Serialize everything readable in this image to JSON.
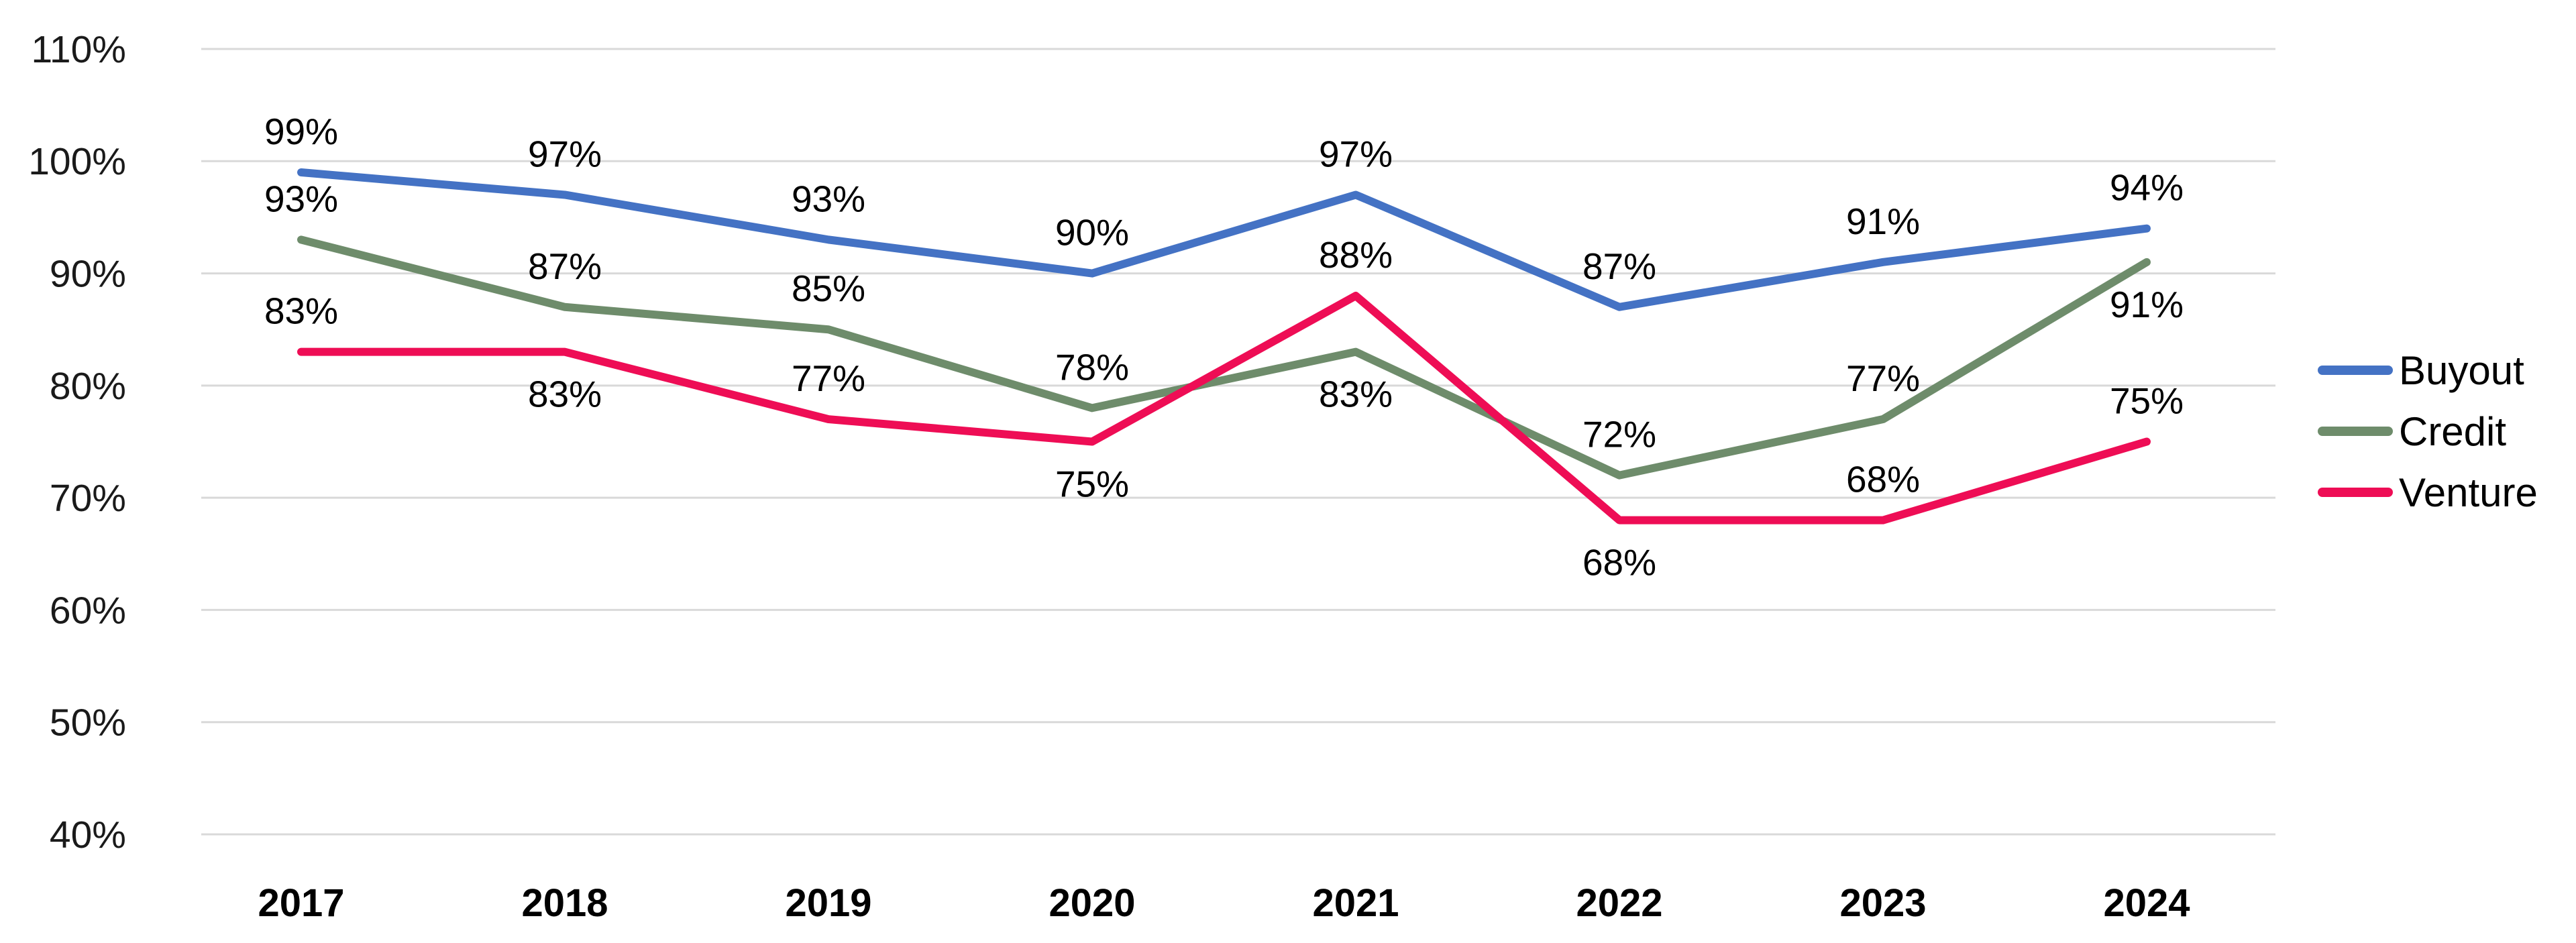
{
  "chart_data": {
    "type": "line",
    "title": "",
    "xlabel": "",
    "ylabel": "",
    "categories": [
      "2017",
      "2018",
      "2019",
      "2020",
      "2021",
      "2022",
      "2023",
      "2024"
    ],
    "series": [
      {
        "name": "Buyout",
        "color": "#4472C4",
        "values": [
          99,
          97,
          93,
          90,
          97,
          87,
          91,
          94
        ],
        "data_labels": [
          "99%",
          "97%",
          "93%",
          "90%",
          "97%",
          "87%",
          "91%",
          "94%"
        ],
        "label_positions": [
          "above",
          "above",
          "above",
          "above",
          "above",
          "above",
          "above",
          "above"
        ]
      },
      {
        "name": "Credit",
        "color": "#6E8C6B",
        "values": [
          93,
          87,
          85,
          78,
          83,
          72,
          77,
          91
        ],
        "data_labels": [
          "93%",
          "87%",
          "85%",
          "78%",
          "83%",
          "72%",
          "77%",
          "91%"
        ],
        "label_positions": [
          "above",
          "above",
          "above",
          "above",
          "below",
          "above",
          "above",
          "below"
        ]
      },
      {
        "name": "Venture",
        "color": "#EE0D55",
        "values": [
          83,
          83,
          77,
          75,
          88,
          68,
          68,
          75
        ],
        "data_labels": [
          "83%",
          "83%",
          "77%",
          "75%",
          "88%",
          "68%",
          "68%",
          "75%"
        ],
        "label_positions": [
          "above",
          "below",
          "above",
          "below",
          "above",
          "below",
          "above",
          "above"
        ]
      }
    ],
    "y_axis": {
      "min": 40,
      "max": 110,
      "step": 10,
      "tick_labels": [
        "110%",
        "100%",
        "90%",
        "80%",
        "70%",
        "60%",
        "50%",
        "40%"
      ],
      "tick_suffix": "%"
    },
    "grid": true,
    "gridline_color": "#D9D9D9",
    "axis_text_color": "#1a1a1a",
    "data_label_color": "#000000",
    "legend_position": "right",
    "legend_entries": [
      "Buyout",
      "Credit",
      "Venture"
    ]
  }
}
